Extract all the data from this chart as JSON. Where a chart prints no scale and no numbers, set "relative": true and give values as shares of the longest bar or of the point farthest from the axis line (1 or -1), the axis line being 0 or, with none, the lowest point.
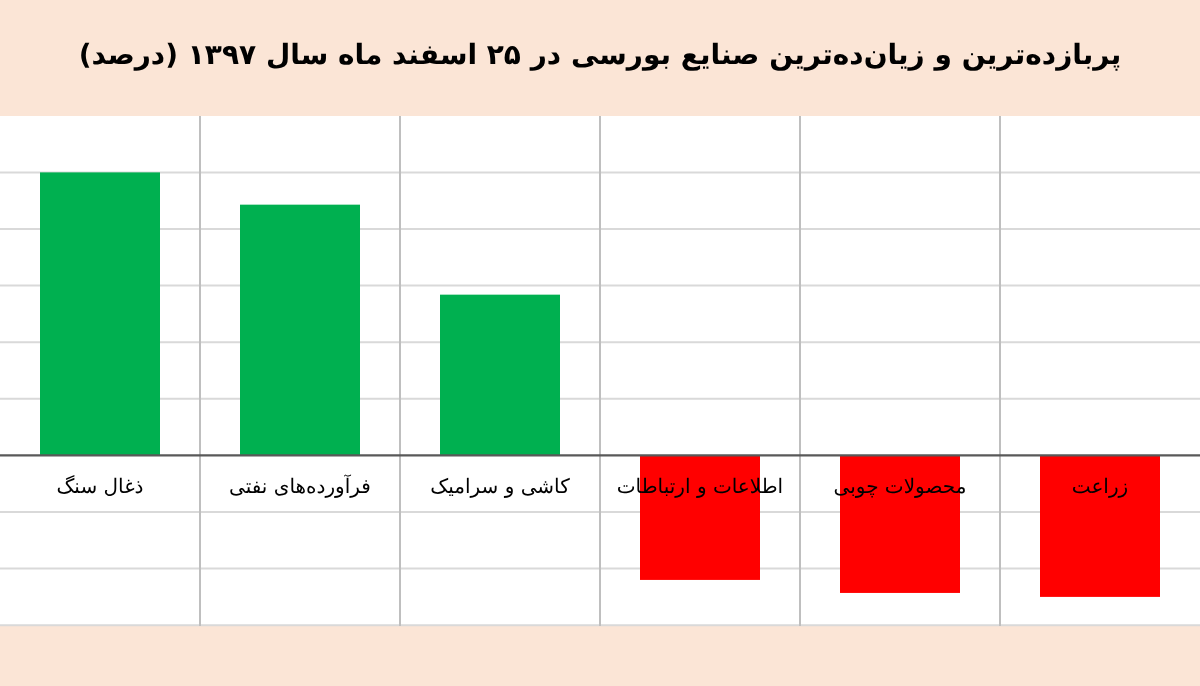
{
  "chart_data": {
    "type": "bar",
    "title": "پربازده‌ترین و زیان‌ده‌ترین صنایع بورسی در ۲۵ اسفند ماه سال ۱۳۹۷ (درصد)",
    "categories": [
      "ذغال سنگ",
      "فرآورده‌های نفتی",
      "کاشی و سرامیک",
      "اطلاعات و ارتباطات",
      "محصولات چوبی",
      "زراعت"
    ],
    "values": [
      1,
      0.886,
      0.568,
      -0.44,
      -0.486,
      -0.5
    ],
    "colors": [
      "#00b050",
      "#00b050",
      "#00b050",
      "#ff0000",
      "#ff0000",
      "#ff0000"
    ],
    "relative": true,
    "grid": true
  }
}
